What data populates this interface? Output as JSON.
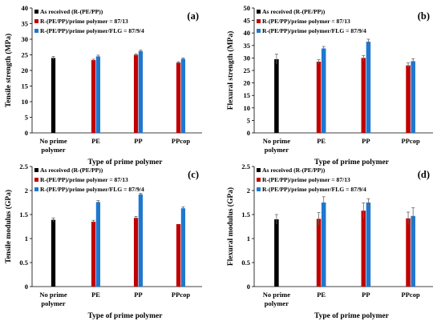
{
  "figure": {
    "colors": {
      "as_received": "#000000",
      "prime_polymer": "#c00000",
      "flg": "#1f77d0"
    },
    "legend": [
      "As received (R-(PE/PP))",
      "R-(PE/PP)/prime polymer = 87/13",
      "R-(PE/PP)/prime polymer/FLG = 87/9/4"
    ]
  },
  "chart_data": [
    {
      "type": "bar",
      "panel_label": "(a)",
      "ylabel": "Tensile strength (MPa)",
      "xlabel": "Type of prime polymer",
      "categories": [
        [
          "No prime",
          "polymer"
        ],
        [
          "PE"
        ],
        [
          "PP"
        ],
        [
          "PPcop"
        ]
      ],
      "ylim": [
        0,
        40
      ],
      "yticks": [
        0,
        5,
        10,
        15,
        20,
        25,
        30,
        35,
        40
      ],
      "legend_position": "top-left",
      "series": [
        {
          "name": "As received (R-(PE/PP))",
          "values": [
            24.0,
            null,
            null,
            null
          ],
          "errors": [
            0.5,
            null,
            null,
            null
          ]
        },
        {
          "name": "R-(PE/PP)/prime polymer = 87/13",
          "values": [
            null,
            23.3,
            25.0,
            22.5
          ],
          "errors": [
            null,
            0.3,
            0.3,
            0.3
          ]
        },
        {
          "name": "R-(PE/PP)/prime polymer/FLG = 87/9/4",
          "values": [
            null,
            24.5,
            26.2,
            23.7
          ],
          "errors": [
            null,
            0.4,
            0.3,
            0.3
          ]
        }
      ]
    },
    {
      "type": "bar",
      "panel_label": "(b)",
      "ylabel": "Flexural strength (MPa)",
      "xlabel": "Type of prime polymer",
      "categories": [
        [
          "No prime",
          "polymer"
        ],
        [
          "PE"
        ],
        [
          "PP"
        ],
        [
          "PPcop"
        ]
      ],
      "ylim": [
        0,
        50
      ],
      "yticks": [
        0,
        5,
        10,
        15,
        20,
        25,
        30,
        35,
        40,
        45,
        50
      ],
      "legend_position": "top-left",
      "series": [
        {
          "name": "As received (R-(PE/PP))",
          "values": [
            29.5,
            null,
            null,
            null
          ],
          "errors": [
            2.0,
            null,
            null,
            null
          ]
        },
        {
          "name": "R-(PE/PP)/prime polymer = 87/13",
          "values": [
            null,
            28.5,
            30.0,
            27.0
          ],
          "errors": [
            null,
            0.8,
            1.0,
            1.0
          ]
        },
        {
          "name": "R-(PE/PP)/prime polymer/FLG = 87/9/4",
          "values": [
            null,
            33.8,
            36.5,
            28.7
          ],
          "errors": [
            null,
            0.8,
            1.0,
            1.0
          ]
        }
      ]
    },
    {
      "type": "bar",
      "panel_label": "(c)",
      "ylabel": "Tensile modulus (GPa)",
      "xlabel": "Type of prime polymer",
      "categories": [
        [
          "No prime",
          "polymer"
        ],
        [
          "PE"
        ],
        [
          "PP"
        ],
        [
          "PPcop"
        ]
      ],
      "ylim": [
        0,
        2.5
      ],
      "yticks": [
        0,
        0.5,
        1,
        1.5,
        2,
        2.5
      ],
      "legend_position": "top-left",
      "series": [
        {
          "name": "As received (R-(PE/PP))",
          "values": [
            1.39,
            null,
            null,
            null
          ],
          "errors": [
            0.04,
            null,
            null,
            null
          ]
        },
        {
          "name": "R-(PE/PP)/prime polymer = 87/13",
          "values": [
            null,
            1.35,
            1.43,
            1.3
          ],
          "errors": [
            null,
            0.03,
            0.03,
            0.0
          ]
        },
        {
          "name": "R-(PE/PP)/prime polymer/FLG = 87/9/4",
          "values": [
            null,
            1.76,
            1.92,
            1.63
          ],
          "errors": [
            null,
            0.03,
            0.02,
            0.03
          ]
        }
      ]
    },
    {
      "type": "bar",
      "panel_label": "(d)",
      "ylabel": "Flexural modulus (GPa)",
      "xlabel": "Type of prime polymer",
      "categories": [
        [
          "No prime",
          "polymer"
        ],
        [
          "PE"
        ],
        [
          "PP"
        ],
        [
          "PPcop"
        ]
      ],
      "ylim": [
        0,
        2.5
      ],
      "yticks": [
        0,
        0.5,
        1,
        1.5,
        2,
        2.5
      ],
      "legend_position": "top-left",
      "series": [
        {
          "name": "As received (R-(PE/PP))",
          "values": [
            1.4,
            null,
            null,
            null
          ],
          "errors": [
            0.1,
            null,
            null,
            null
          ]
        },
        {
          "name": "R-(PE/PP)/prime polymer = 87/13",
          "values": [
            null,
            1.41,
            1.58,
            1.42
          ],
          "errors": [
            null,
            0.13,
            0.16,
            0.13
          ]
        },
        {
          "name": "R-(PE/PP)/prime polymer/FLG = 87/9/4",
          "values": [
            null,
            1.75,
            1.75,
            1.47
          ],
          "errors": [
            null,
            0.12,
            0.08,
            0.17
          ]
        }
      ]
    }
  ]
}
